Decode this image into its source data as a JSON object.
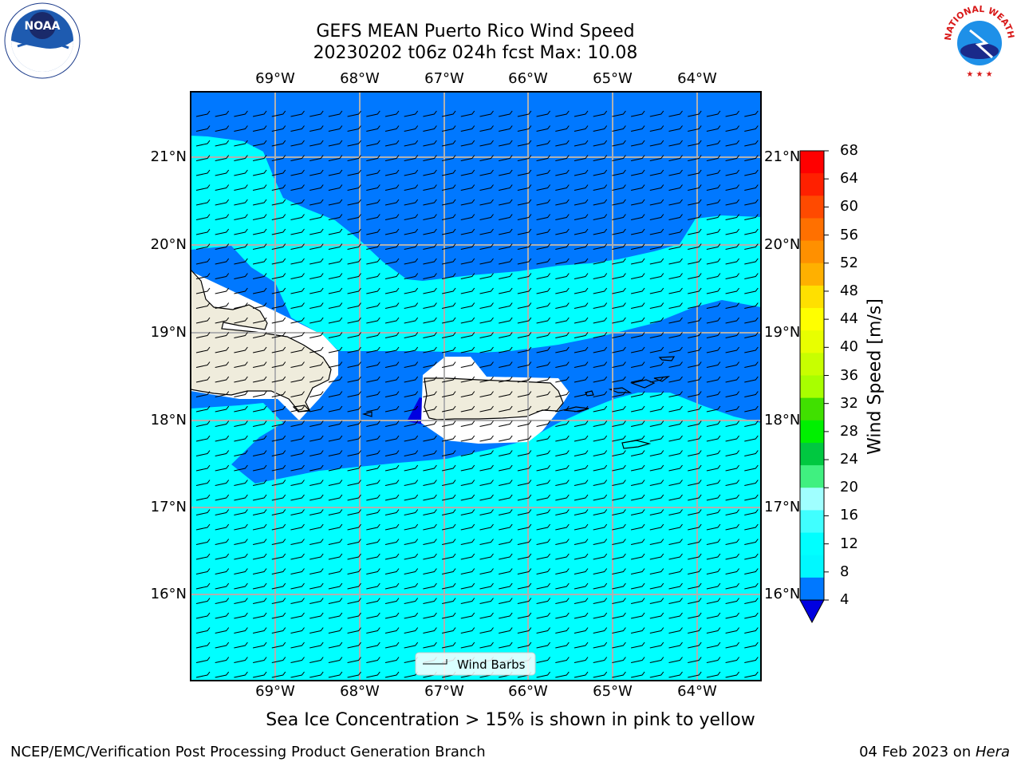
{
  "title": {
    "line1": "GEFS MEAN Puerto Rico Wind Speed",
    "line2": "20230202 t06z 024h fcst   Max: 10.08"
  },
  "map": {
    "lon_labels": [
      "69°W",
      "68°W",
      "67°W",
      "66°W",
      "65°W",
      "64°W"
    ],
    "lat_labels": [
      "21°N",
      "20°N",
      "19°N",
      "18°N",
      "17°N",
      "16°N"
    ],
    "legend_label": "Wind Barbs"
  },
  "colorbar": {
    "title": "Wind Speed [m/s]",
    "tick_labels": [
      "68",
      "64",
      "60",
      "56",
      "52",
      "48",
      "44",
      "40",
      "36",
      "32",
      "28",
      "24",
      "20",
      "16",
      "12",
      "8",
      "4"
    ],
    "colors": [
      "#ff0000",
      "#ff2000",
      "#ff4a00",
      "#ff7000",
      "#ff9000",
      "#ffb000",
      "#ffe000",
      "#ffff00",
      "#e8ff00",
      "#c8ff00",
      "#a8ff00",
      "#40e000",
      "#00f000",
      "#00c840",
      "#40f080",
      "#a0ffff",
      "#40ffff",
      "#00ffff",
      "#00f8ff",
      "#0078ff"
    ],
    "extend_color": "#0000e0"
  },
  "note": "Sea Ice Concentration > 15% is shown in pink to yellow",
  "footer": {
    "left": "NCEP/EMC/Verification Post Processing Product Generation Branch",
    "date": "04 Feb 2023 on ",
    "machine": "Hera"
  },
  "logos": {
    "noaa_text": "NOAA",
    "nws_text": "NATIONAL WEATHER SERVICE"
  },
  "wind_speed_colors": {
    "band_4_8": "#0078ff",
    "band_8_12": "#00ffff",
    "land": "#efecdc"
  }
}
